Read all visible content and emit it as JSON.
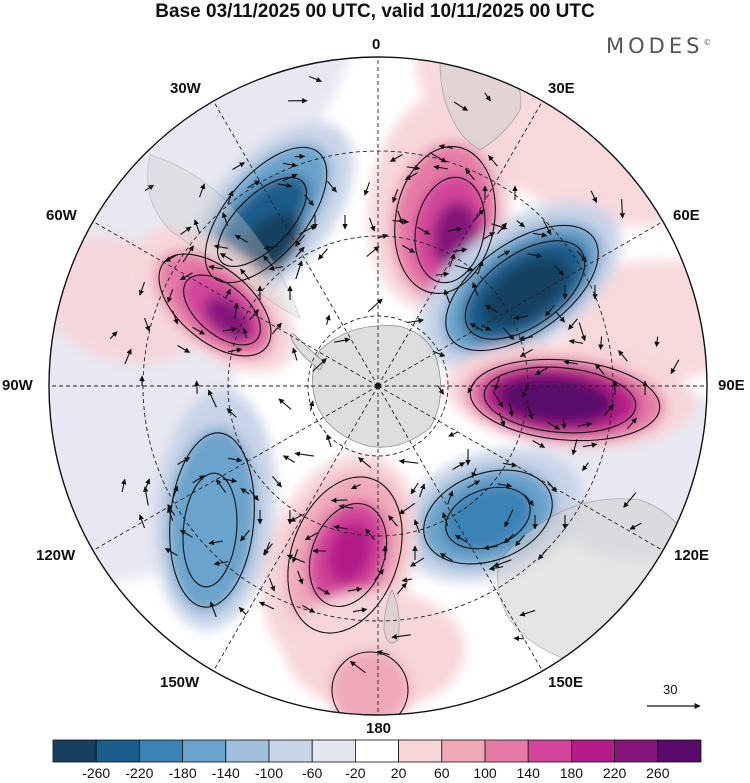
{
  "title": "Base 03/11/2025 00 UTC, valid 10/11/2025 00 UTC",
  "brand": "MODES",
  "brand_mark": "©",
  "longitude_labels": [
    {
      "id": "lon-0",
      "text": "0"
    },
    {
      "id": "lon-30e",
      "text": "30E"
    },
    {
      "id": "lon-60e",
      "text": "60E"
    },
    {
      "id": "lon-90e",
      "text": "90E"
    },
    {
      "id": "lon-120e",
      "text": "120E"
    },
    {
      "id": "lon-150e",
      "text": "150E"
    },
    {
      "id": "lon-180",
      "text": "180"
    },
    {
      "id": "lon-150w",
      "text": "150W"
    },
    {
      "id": "lon-120w",
      "text": "120W"
    },
    {
      "id": "lon-90w",
      "text": "90W"
    },
    {
      "id": "lon-60w",
      "text": "60W"
    },
    {
      "id": "lon-30w",
      "text": "30W"
    }
  ],
  "vector_reference": "30",
  "colorbar": {
    "colors": [
      "#173f5f",
      "#1b5d8c",
      "#3b82b5",
      "#6aa3cb",
      "#a0bfdd",
      "#c8d4e8",
      "#e4e6f1",
      "#ffffff",
      "#f7d5d8",
      "#f0a9b9",
      "#e57aa6",
      "#d2459a",
      "#b31c87",
      "#84157a",
      "#5a0a6b"
    ],
    "tick_labels": [
      "-260",
      "-220",
      "-180",
      "-140",
      "-100",
      "-60",
      "-20",
      "20",
      "60",
      "100",
      "140",
      "180",
      "220",
      "260"
    ]
  },
  "anomaly_centers": [
    {
      "name": "blue-30w",
      "sign": "negative",
      "color": "#173f5f"
    },
    {
      "name": "purple-60w",
      "sign": "positive",
      "color": "#84157a"
    },
    {
      "name": "purple-20e",
      "sign": "positive",
      "color": "#84157a"
    },
    {
      "name": "blue-55e",
      "sign": "negative",
      "color": "#173f5f"
    },
    {
      "name": "purple-90e",
      "sign": "positive",
      "color": "#5a0a6b"
    },
    {
      "name": "blue-135e",
      "sign": "negative",
      "color": "#3b82b5"
    },
    {
      "name": "pink-160w",
      "sign": "positive",
      "color": "#b31c87"
    },
    {
      "name": "blue-125w",
      "sign": "negative",
      "color": "#6aa3cb"
    },
    {
      "name": "pink-180",
      "sign": "positive",
      "color": "#f0a9b9"
    }
  ]
}
